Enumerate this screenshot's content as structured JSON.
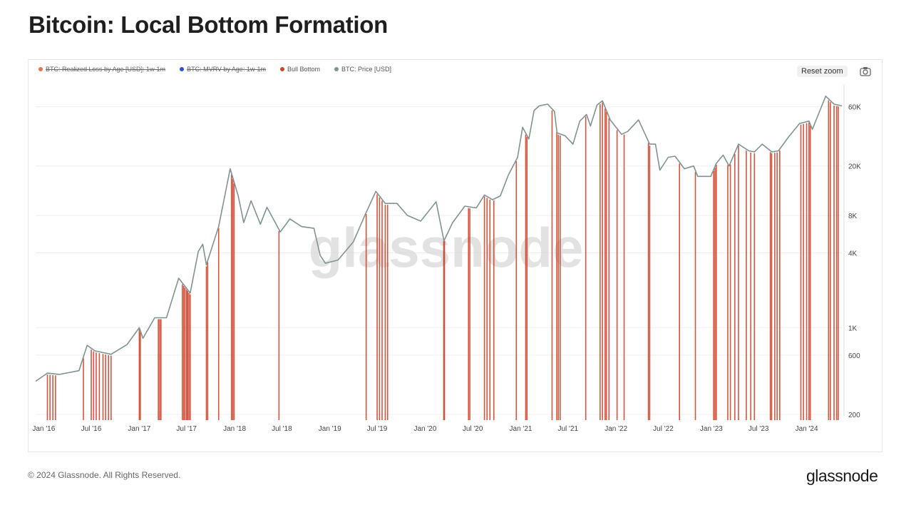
{
  "title": "Bitcoin: Local Bottom Formation",
  "legend": [
    {
      "label": "BTC: Realized Loss by Age [USD]: 1w-1m",
      "color": "#e8735a",
      "struck": true
    },
    {
      "label": "BTC: MVRV by Age: 1w-1m",
      "color": "#2f4fd8",
      "struck": true
    },
    {
      "label": "Bull Bottom",
      "color": "#d2432b",
      "struck": false
    },
    {
      "label": "BTC: Price [USD]",
      "color": "#7f9393",
      "struck": false
    }
  ],
  "toolbar": {
    "reset_label": "Reset zoom"
  },
  "watermark": "glassnode",
  "footer": {
    "copyright": "© 2024 Glassnode. All Rights Reserved.",
    "brand": "glassnode"
  },
  "colors": {
    "price_line": "#7f9393",
    "bull_bottom": "#d2432b",
    "grid": "#efefef"
  },
  "chart_data": {
    "type": "line",
    "title": "Bitcoin: Local Bottom Formation",
    "y_scale": "log",
    "ylim": [
      200,
      90000
    ],
    "xlim": [
      "2015-12-01",
      "2024-05-15"
    ],
    "x_ticks": [
      "Jan '16",
      "Jul '16",
      "Jan '17",
      "Jul '17",
      "Jan '18",
      "Jul '18",
      "Jan '19",
      "Jul '19",
      "Jan '20",
      "Jul '20",
      "Jan '21",
      "Jul '21",
      "Jan '22",
      "Jul '22",
      "Jan '23",
      "Jul '23",
      "Jan '24"
    ],
    "y_ticks": [
      {
        "label": "200",
        "value": 200
      },
      {
        "label": "600",
        "value": 600
      },
      {
        "label": "1K",
        "value": 1000
      },
      {
        "label": "4K",
        "value": 4000
      },
      {
        "label": "8K",
        "value": 8000
      },
      {
        "label": "20K",
        "value": 20000
      },
      {
        "label": "60K",
        "value": 60000
      }
    ],
    "series": [
      {
        "name": "BTC: Price [USD]",
        "type": "line",
        "x": [
          "2015-12-01",
          "2016-01-15",
          "2016-03-01",
          "2016-05-15",
          "2016-06-15",
          "2016-07-15",
          "2016-09-15",
          "2016-11-15",
          "2017-01-01",
          "2017-01-15",
          "2017-03-01",
          "2017-04-15",
          "2017-06-01",
          "2017-07-15",
          "2017-08-15",
          "2017-09-01",
          "2017-09-15",
          "2017-11-01",
          "2017-12-15",
          "2018-01-15",
          "2018-02-05",
          "2018-03-05",
          "2018-04-10",
          "2018-05-05",
          "2018-06-25",
          "2018-08-01",
          "2018-09-15",
          "2018-11-01",
          "2018-11-25",
          "2018-12-15",
          "2019-02-01",
          "2019-04-01",
          "2019-05-15",
          "2019-06-26",
          "2019-08-01",
          "2019-09-15",
          "2019-10-25",
          "2019-12-15",
          "2020-02-12",
          "2020-03-13",
          "2020-04-15",
          "2020-06-01",
          "2020-07-15",
          "2020-08-15",
          "2020-09-15",
          "2020-10-15",
          "2020-11-15",
          "2020-12-20",
          "2021-01-08",
          "2021-02-01",
          "2021-02-21",
          "2021-03-13",
          "2021-04-14",
          "2021-05-10",
          "2021-05-20",
          "2021-06-20",
          "2021-07-20",
          "2021-08-15",
          "2021-09-10",
          "2021-09-25",
          "2021-10-20",
          "2021-11-10",
          "2021-12-10",
          "2022-01-22",
          "2022-02-15",
          "2022-03-28",
          "2022-05-10",
          "2022-06-01",
          "2022-06-18",
          "2022-07-20",
          "2022-08-15",
          "2022-09-20",
          "2022-10-25",
          "2022-11-10",
          "2022-12-30",
          "2023-01-20",
          "2023-02-15",
          "2023-03-10",
          "2023-04-15",
          "2023-05-25",
          "2023-06-15",
          "2023-07-15",
          "2023-08-20",
          "2023-09-15",
          "2023-10-25",
          "2023-12-05",
          "2024-01-10",
          "2024-01-23",
          "2024-02-15",
          "2024-03-14",
          "2024-04-15",
          "2024-05-15"
        ],
        "values": [
          370,
          430,
          420,
          450,
          720,
          650,
          610,
          730,
          1000,
          820,
          1200,
          1200,
          2500,
          1900,
          4100,
          4700,
          3200,
          6500,
          19000,
          11500,
          7000,
          10500,
          6800,
          9300,
          5900,
          7500,
          6500,
          6300,
          3800,
          3300,
          3500,
          4900,
          8000,
          12500,
          10000,
          10000,
          8000,
          7200,
          10300,
          5000,
          7000,
          9500,
          9200,
          11700,
          10700,
          11500,
          17000,
          23500,
          41000,
          33000,
          56000,
          61000,
          63000,
          55000,
          37000,
          35000,
          30000,
          46000,
          52000,
          42000,
          62000,
          67000,
          47000,
          36000,
          38000,
          47000,
          30000,
          30000,
          18500,
          23500,
          24000,
          19000,
          20000,
          16500,
          16500,
          21000,
          24500,
          20000,
          30000,
          26500,
          26000,
          30000,
          26000,
          26500,
          34500,
          44000,
          46000,
          39500,
          52000,
          73000,
          63000,
          61000
        ]
      },
      {
        "name": "Bull Bottom",
        "type": "vertical-bars",
        "x": [
          "2016-01-15",
          "2016-01-25",
          "2016-02-05",
          "2016-02-15",
          "2016-06-01",
          "2016-07-01",
          "2016-07-10",
          "2016-07-20",
          "2016-08-01",
          "2016-08-15",
          "2016-08-25",
          "2016-09-05",
          "2016-09-15",
          "2017-01-01",
          "2017-01-05",
          "2017-03-15",
          "2017-03-20",
          "2017-03-25",
          "2017-06-15",
          "2017-06-20",
          "2017-06-25",
          "2017-07-01",
          "2017-07-05",
          "2017-07-10",
          "2017-07-15",
          "2017-09-15",
          "2017-09-20",
          "2017-11-01",
          "2017-12-20",
          "2017-12-25",
          "2017-12-30",
          "2018-06-20",
          "2019-05-20",
          "2019-07-01",
          "2019-07-10",
          "2019-07-20",
          "2019-08-01",
          "2019-08-10",
          "2020-03-12",
          "2020-03-15",
          "2020-06-15",
          "2020-06-20",
          "2020-08-15",
          "2020-08-25",
          "2020-09-05",
          "2020-09-20",
          "2020-12-15",
          "2021-01-20",
          "2021-01-25",
          "2021-05-01",
          "2021-05-19",
          "2021-05-25",
          "2021-06-01",
          "2021-09-07",
          "2021-11-01",
          "2021-11-10",
          "2021-11-20",
          "2021-11-25",
          "2021-12-05",
          "2022-01-05",
          "2022-02-01",
          "2022-05-05",
          "2022-05-10",
          "2022-09-01",
          "2022-11-01",
          "2023-01-10",
          "2023-01-15",
          "2023-01-20",
          "2023-03-05",
          "2023-03-15",
          "2023-04-01",
          "2023-04-15",
          "2023-05-15",
          "2023-06-01",
          "2023-06-15",
          "2023-08-15",
          "2023-08-20",
          "2023-09-01",
          "2023-09-10",
          "2023-09-20",
          "2023-12-10",
          "2023-12-20",
          "2024-01-01",
          "2024-01-10",
          "2024-01-15",
          "2024-03-25",
          "2024-04-01",
          "2024-04-15",
          "2024-04-25",
          "2024-05-01"
        ]
      }
    ]
  }
}
